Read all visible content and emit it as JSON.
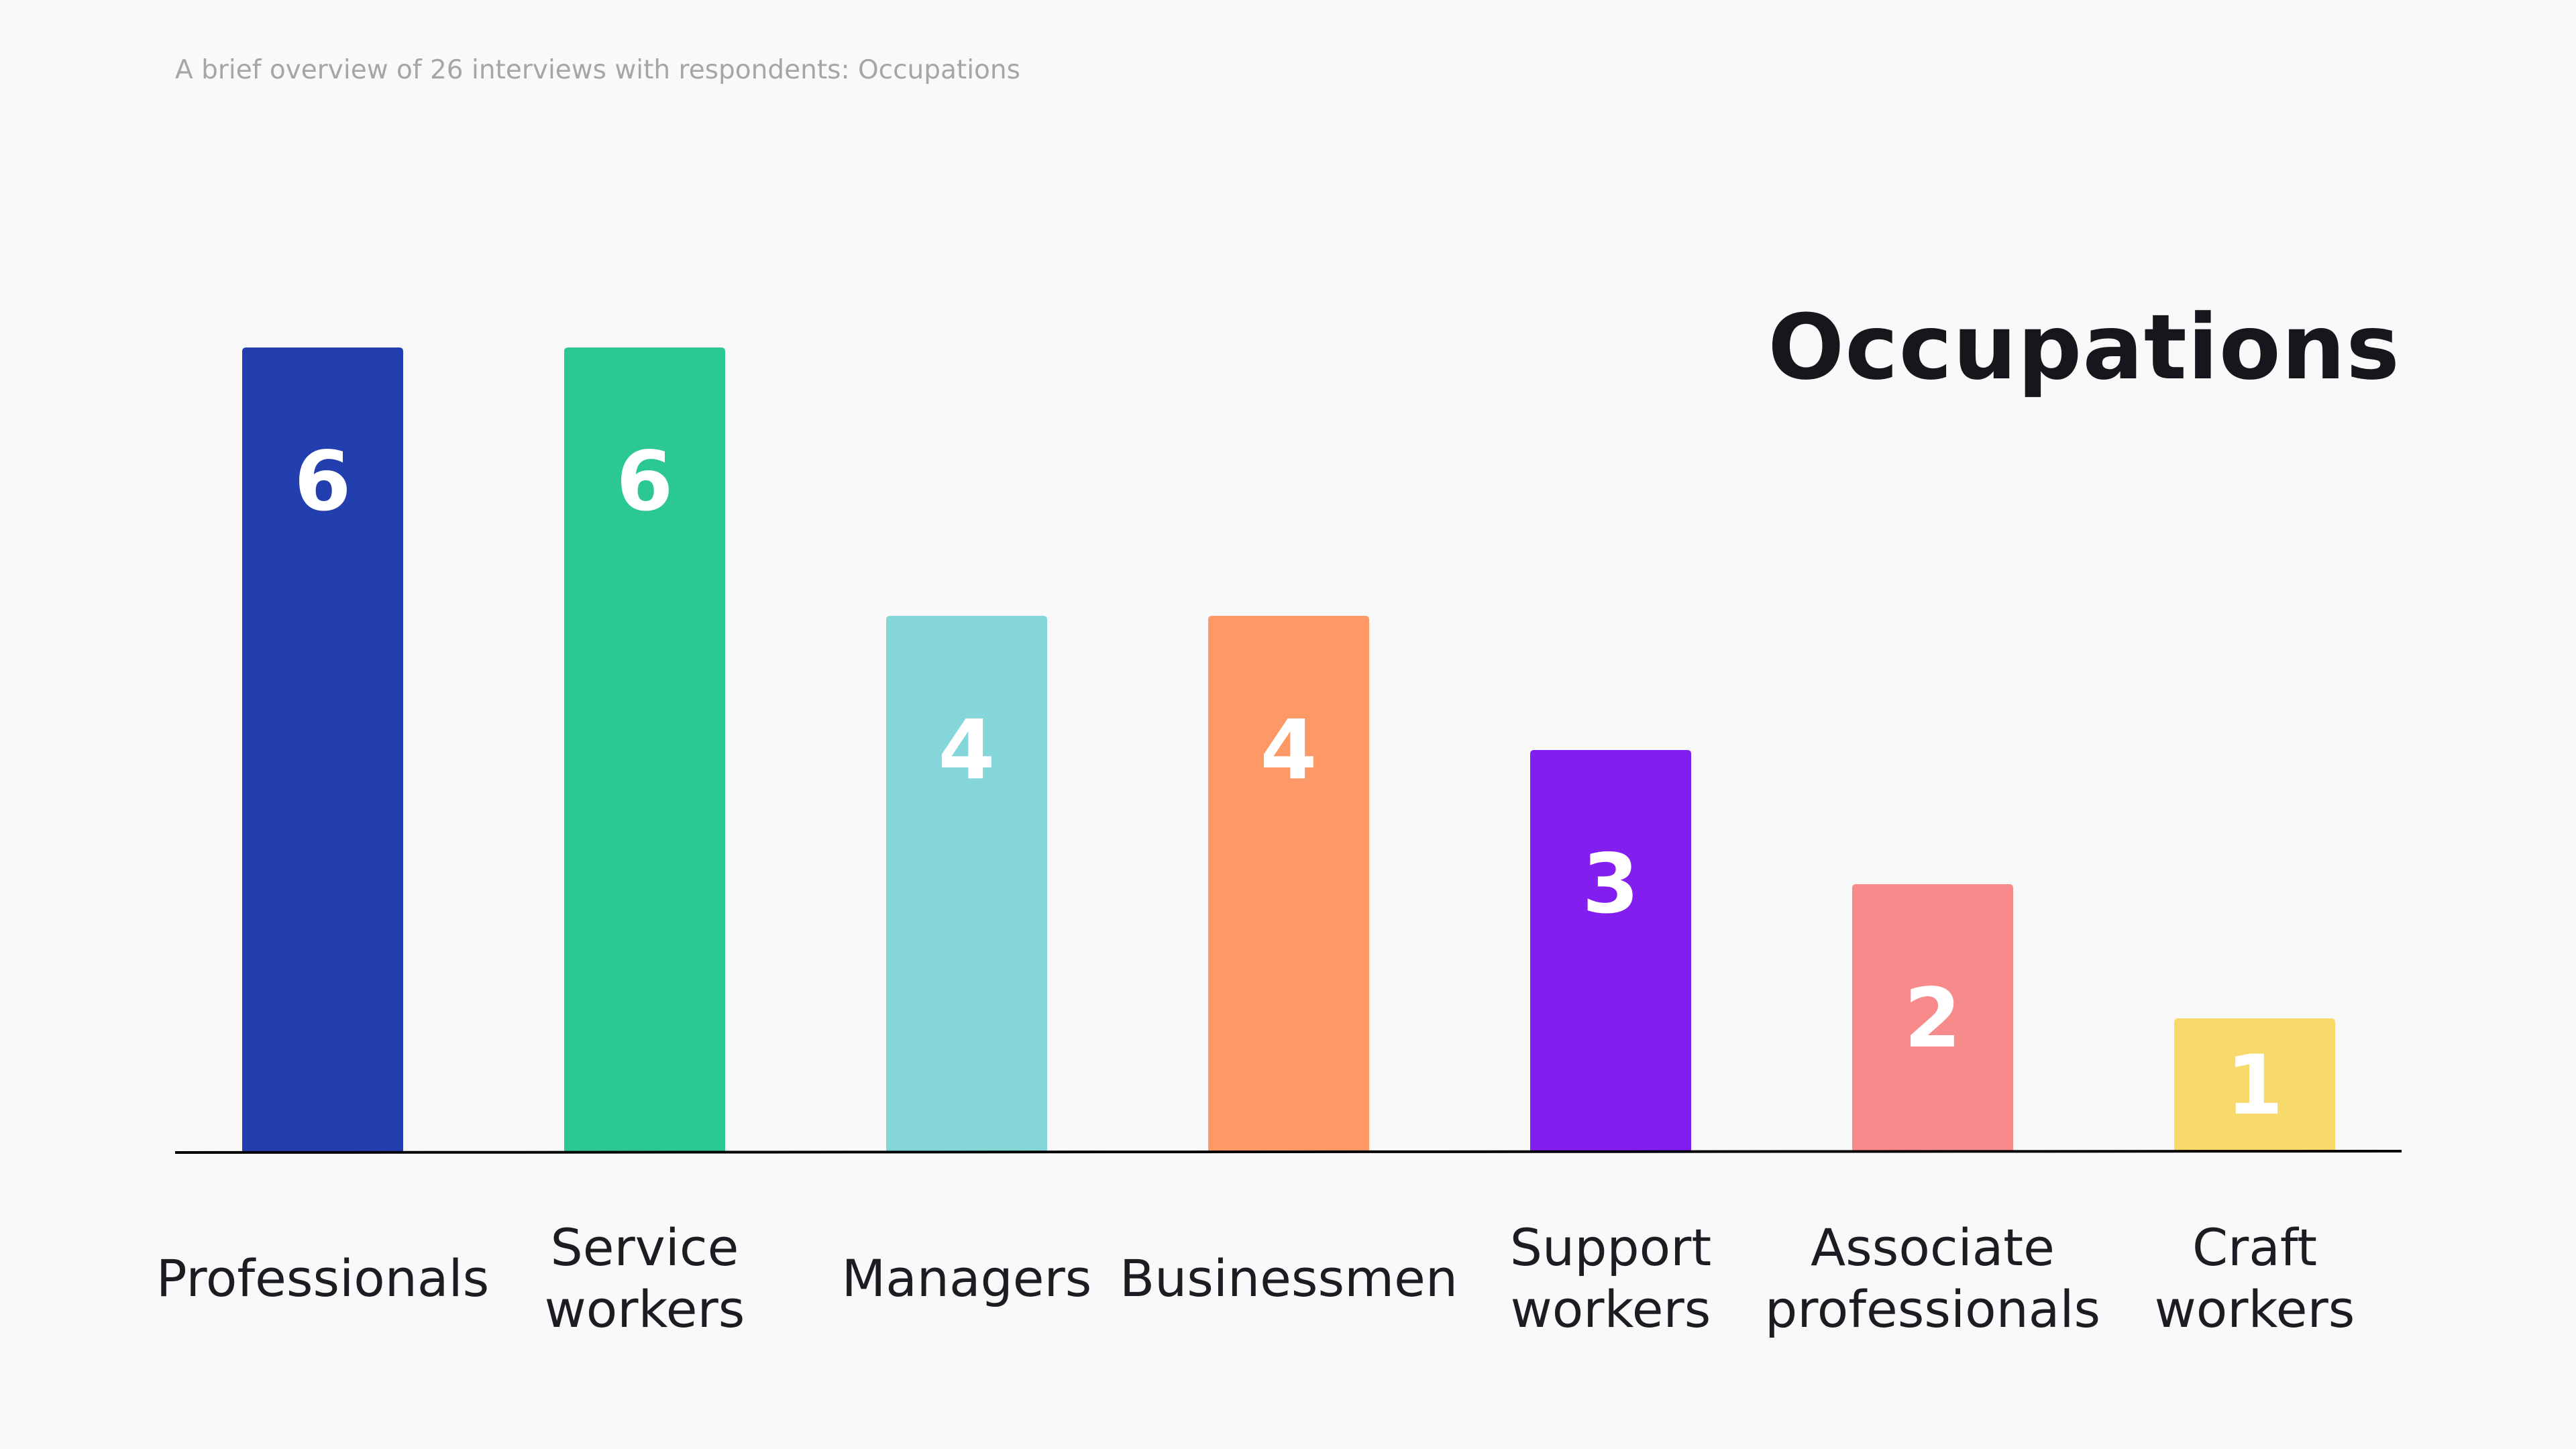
{
  "subtitle": "A brief overview of 26 interviews with respondents: Occupations",
  "chart_data": {
    "type": "bar",
    "title": "Occupations",
    "categories": [
      "Professionals",
      "Service workers",
      "Managers",
      "Businessmen",
      "Support workers",
      "Associate professionals",
      "Craft workers"
    ],
    "category_lines": [
      [
        "Professionals"
      ],
      [
        "Service",
        "workers"
      ],
      [
        "Managers"
      ],
      [
        "Businessmen"
      ],
      [
        "Support",
        "workers"
      ],
      [
        "Associate",
        "professionals"
      ],
      [
        "Craft",
        "workers"
      ]
    ],
    "values": [
      6,
      6,
      4,
      4,
      3,
      2,
      1
    ],
    "colors": [
      "#233eae",
      "#2bc795",
      "#85d6d9",
      "#fd9966",
      "#831ef0",
      "#f78b8b",
      "#f8d96c"
    ],
    "ylim": [
      0,
      6
    ],
    "grid": false,
    "legend": "none",
    "xlabel": "",
    "ylabel": ""
  }
}
